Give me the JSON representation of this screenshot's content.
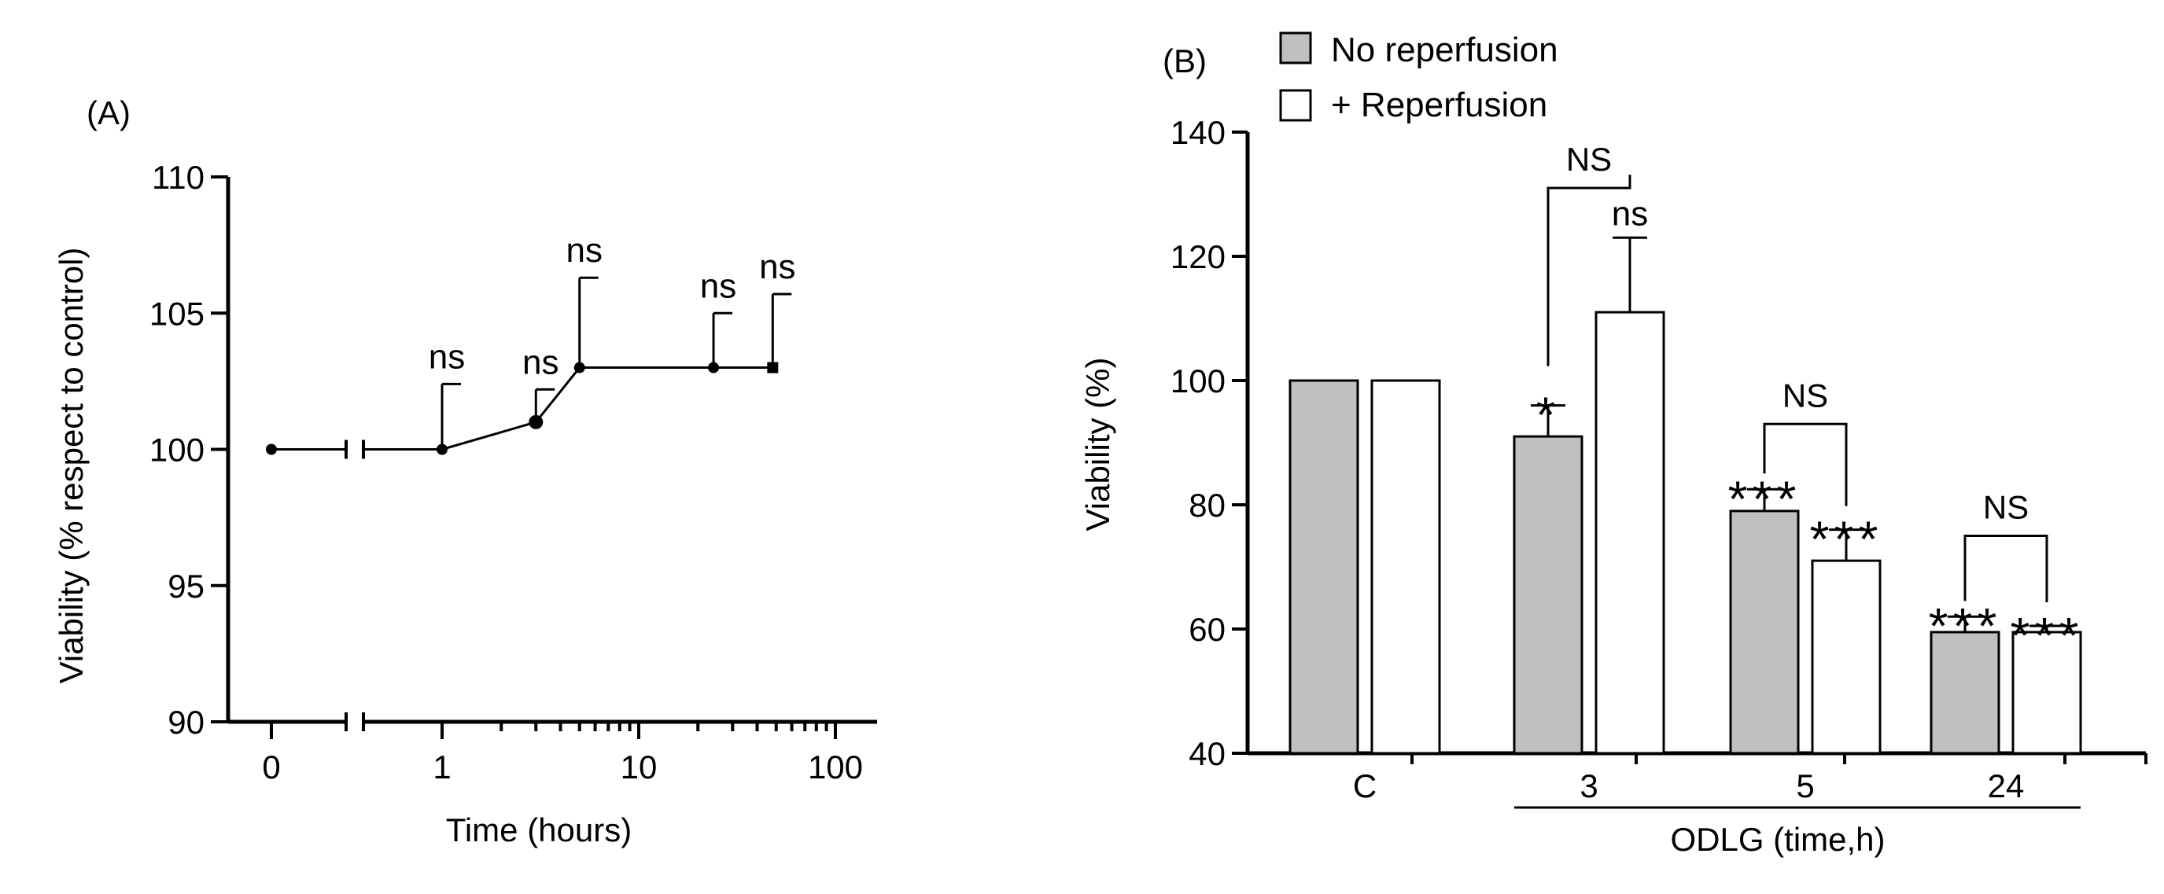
{
  "chart_data": [
    {
      "panel": "(A)",
      "type": "line",
      "ylabel": "Viability (% respect to control)",
      "xlabel": "Time (hours)",
      "xscale": "log with axis break after 0",
      "ylim": [
        90,
        110
      ],
      "yticks": [
        90,
        95,
        100,
        105,
        110
      ],
      "xtick_labels": [
        "0",
        "1",
        "10",
        "100"
      ],
      "points": [
        {
          "x": 0,
          "y": 100,
          "err": 0,
          "label": ""
        },
        {
          "x": 1,
          "y": 100,
          "err": 2.4,
          "label": "ns"
        },
        {
          "x": 3,
          "y": 101,
          "err": 1.2,
          "label": "ns"
        },
        {
          "x": 5,
          "y": 103,
          "err": 3.3,
          "label": "ns"
        },
        {
          "x": 24,
          "y": 103,
          "err": 2.0,
          "label": "ns"
        },
        {
          "x": 48,
          "y": 103,
          "err": 2.7,
          "label": "ns"
        }
      ]
    },
    {
      "panel": "(B)",
      "type": "bar",
      "ylabel": "Viability (%)",
      "xlabel": "ODLG (time,h)",
      "ylim": [
        40,
        140
      ],
      "yticks": [
        40,
        60,
        80,
        100,
        120,
        140
      ],
      "categories": [
        "C",
        "3",
        "5",
        "24"
      ],
      "legend": {
        "position": "top-left",
        "entries": [
          "No reperfusion",
          "+ Reperfusion"
        ]
      },
      "series": [
        {
          "name": "No reperfusion",
          "color": "#c0c0c0",
          "values": [
            100,
            91,
            79,
            59.5
          ],
          "errors": [
            0,
            5,
            3.5,
            2.5
          ],
          "stars": [
            "",
            "*",
            "***",
            "***"
          ]
        },
        {
          "name": "+ Reperfusion",
          "color": "#ffffff",
          "values": [
            100,
            111,
            71,
            59.5
          ],
          "errors": [
            0,
            12,
            5,
            1
          ],
          "stars": [
            "",
            "ns",
            "***",
            "***"
          ]
        }
      ],
      "comparisons": [
        "NS",
        "NS",
        "NS"
      ]
    }
  ]
}
